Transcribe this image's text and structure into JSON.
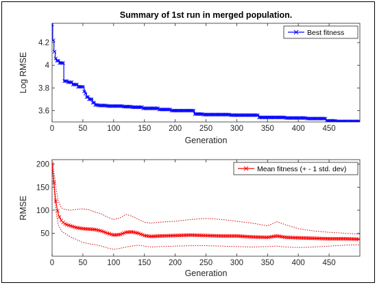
{
  "chart_data": [
    {
      "type": "line",
      "title": "Summary of 1st run in merged population.",
      "xlabel": "Generation",
      "ylabel": "Log RMSE",
      "xlim": [
        0,
        500
      ],
      "ylim": [
        3.5,
        4.37
      ],
      "xticks": [
        0,
        50,
        100,
        150,
        200,
        250,
        300,
        350,
        400,
        450
      ],
      "yticks": [
        3.6,
        3.8,
        4,
        4.2
      ],
      "xtick_labels": [
        "0",
        "50",
        "100",
        "150",
        "200",
        "250",
        "300",
        "350",
        "400",
        "450"
      ],
      "ytick_labels": [
        "3.6",
        "3.8",
        "4",
        "4.2"
      ],
      "grid": false,
      "legend": "top-right",
      "series": [
        {
          "name": "Best fitness",
          "color": "#0000ff",
          "marker": "x",
          "step_points": [
            [
              0,
              4.36
            ],
            [
              1,
              4.22
            ],
            [
              3,
              4.12
            ],
            [
              5,
              4.06
            ],
            [
              7,
              4.04
            ],
            [
              12,
              4.02
            ],
            [
              19,
              3.86
            ],
            [
              26,
              3.85
            ],
            [
              33,
              3.83
            ],
            [
              42,
              3.81
            ],
            [
              52,
              3.77
            ],
            [
              54,
              3.75
            ],
            [
              56,
              3.72
            ],
            [
              60,
              3.7
            ],
            [
              66,
              3.67
            ],
            [
              70,
              3.65
            ],
            [
              76,
              3.645
            ],
            [
              90,
              3.64
            ],
            [
              115,
              3.635
            ],
            [
              130,
              3.63
            ],
            [
              148,
              3.62
            ],
            [
              173,
              3.61
            ],
            [
              193,
              3.6
            ],
            [
              231,
              3.57
            ],
            [
              245,
              3.565
            ],
            [
              290,
              3.56
            ],
            [
              336,
              3.54
            ],
            [
              380,
              3.535
            ],
            [
              414,
              3.53
            ],
            [
              445,
              3.51
            ],
            [
              462,
              3.505
            ],
            [
              500,
              3.505
            ]
          ]
        }
      ]
    },
    {
      "type": "line",
      "title": "",
      "xlabel": "Generation",
      "ylabel": "RMSE",
      "xlim": [
        0,
        500
      ],
      "ylim": [
        0,
        210
      ],
      "xticks": [
        0,
        50,
        100,
        150,
        200,
        250,
        300,
        350,
        400,
        450
      ],
      "yticks": [
        50,
        100,
        150,
        200
      ],
      "xtick_labels": [
        "0",
        "50",
        "100",
        "150",
        "200",
        "250",
        "300",
        "350",
        "400",
        "450"
      ],
      "ytick_labels": [
        "50",
        "100",
        "150",
        "200"
      ],
      "grid": false,
      "legend": "top-right",
      "series": [
        {
          "name": "Mean fitness (+ - 1 std. dev)",
          "color": "#ff0000",
          "marker": "x",
          "points": [
            [
              0,
              200
            ],
            [
              2,
              175
            ],
            [
              4,
              145
            ],
            [
              6,
              120
            ],
            [
              8,
              105
            ],
            [
              10,
              92
            ],
            [
              13,
              82
            ],
            [
              16,
              76
            ],
            [
              20,
              71
            ],
            [
              25,
              68
            ],
            [
              30,
              66
            ],
            [
              40,
              62
            ],
            [
              50,
              60
            ],
            [
              60,
              59
            ],
            [
              70,
              58
            ],
            [
              80,
              55
            ],
            [
              90,
              50
            ],
            [
              100,
              46
            ],
            [
              110,
              47
            ],
            [
              120,
              52
            ],
            [
              130,
              53
            ],
            [
              140,
              50
            ],
            [
              150,
              45
            ],
            [
              160,
              43
            ],
            [
              175,
              44
            ],
            [
              200,
              45
            ],
            [
              225,
              46
            ],
            [
              250,
              45
            ],
            [
              275,
              44
            ],
            [
              300,
              44
            ],
            [
              325,
              42
            ],
            [
              350,
              41
            ],
            [
              365,
              44
            ],
            [
              380,
              41
            ],
            [
              400,
              40
            ],
            [
              425,
              39
            ],
            [
              450,
              38
            ],
            [
              475,
              38
            ],
            [
              500,
              37
            ]
          ]
        },
        {
          "name": "",
          "color": "#cc0000",
          "points": [
            [
              0,
              205
            ],
            [
              3,
              185
            ],
            [
              6,
              150
            ],
            [
              10,
              120
            ],
            [
              15,
              105
            ],
            [
              20,
              102
            ],
            [
              30,
              100
            ],
            [
              40,
              102
            ],
            [
              50,
              103
            ],
            [
              60,
              101
            ],
            [
              70,
              96
            ],
            [
              80,
              92
            ],
            [
              90,
              85
            ],
            [
              100,
              80
            ],
            [
              110,
              83
            ],
            [
              120,
              91
            ],
            [
              130,
              87
            ],
            [
              140,
              80
            ],
            [
              150,
              74
            ],
            [
              160,
              72
            ],
            [
              175,
              74
            ],
            [
              200,
              76
            ],
            [
              225,
              80
            ],
            [
              250,
              82
            ],
            [
              275,
              80
            ],
            [
              300,
              76
            ],
            [
              325,
              72
            ],
            [
              350,
              66
            ],
            [
              365,
              75
            ],
            [
              380,
              68
            ],
            [
              400,
              60
            ],
            [
              425,
              55
            ],
            [
              450,
              52
            ],
            [
              475,
              50
            ],
            [
              500,
              48
            ]
          ]
        },
        {
          "name": "",
          "color": "#cc0000",
          "points": [
            [
              0,
              195
            ],
            [
              3,
              150
            ],
            [
              6,
              100
            ],
            [
              10,
              68
            ],
            [
              15,
              55
            ],
            [
              20,
              50
            ],
            [
              30,
              42
            ],
            [
              40,
              36
            ],
            [
              50,
              30
            ],
            [
              60,
              27
            ],
            [
              70,
              25
            ],
            [
              80,
              22
            ],
            [
              90,
              18
            ],
            [
              100,
              15
            ],
            [
              110,
              17
            ],
            [
              120,
              20
            ],
            [
              130,
              22
            ],
            [
              140,
              24
            ],
            [
              150,
              22
            ],
            [
              160,
              20
            ],
            [
              175,
              21
            ],
            [
              200,
              22
            ],
            [
              225,
              23
            ],
            [
              250,
              23
            ],
            [
              275,
              22
            ],
            [
              300,
              21
            ],
            [
              325,
              20
            ],
            [
              350,
              21
            ],
            [
              365,
              22
            ],
            [
              380,
              20
            ],
            [
              400,
              19
            ],
            [
              425,
              20
            ],
            [
              450,
              22
            ],
            [
              475,
              24
            ],
            [
              500,
              25
            ]
          ]
        }
      ]
    }
  ]
}
